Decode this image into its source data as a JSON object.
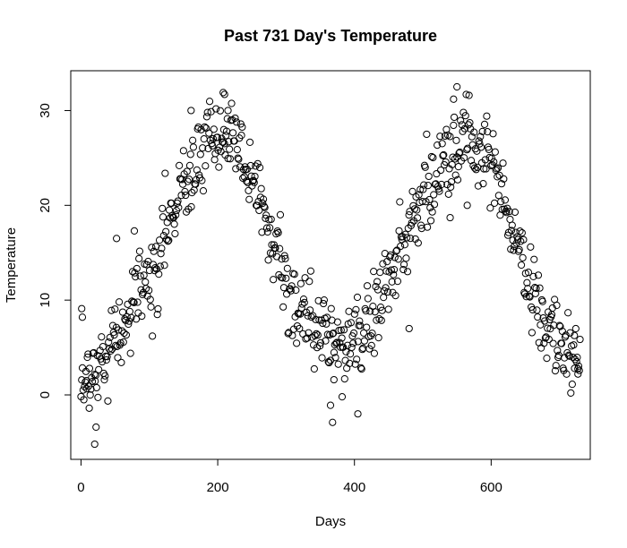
{
  "chart_data": {
    "type": "scatter",
    "title": "Past 731 Day's Temperature",
    "xlabel": "Days",
    "ylabel": "Temperature",
    "xlim": [
      -15,
      745
    ],
    "ylim": [
      -6.8,
      34.2
    ],
    "x_ticks": [
      0,
      200,
      400,
      600
    ],
    "y_ticks": [
      0,
      10,
      20,
      30
    ],
    "grid": false,
    "marker": "open-circle",
    "n_points": 731,
    "seed": 731,
    "curve_points": [
      [
        0,
        2.0
      ],
      [
        30,
        3.5
      ],
      [
        60,
        7.0
      ],
      [
        90,
        11.0
      ],
      [
        120,
        16.0
      ],
      [
        150,
        21.5
      ],
      [
        180,
        25.5
      ],
      [
        200,
        27.5
      ],
      [
        220,
        27.0
      ],
      [
        250,
        23.0
      ],
      [
        270,
        19.0
      ],
      [
        290,
        14.0
      ],
      [
        310,
        10.0
      ],
      [
        330,
        8.5
      ],
      [
        360,
        6.0
      ],
      [
        390,
        5.0
      ],
      [
        420,
        7.0
      ],
      [
        450,
        12.0
      ],
      [
        480,
        17.0
      ],
      [
        510,
        21.5
      ],
      [
        540,
        25.5
      ],
      [
        560,
        27.0
      ],
      [
        580,
        26.5
      ],
      [
        600,
        25.0
      ],
      [
        620,
        20.5
      ],
      [
        640,
        15.0
      ],
      [
        660,
        10.0
      ],
      [
        680,
        7.0
      ],
      [
        700,
        6.0
      ],
      [
        730,
        4.0
      ]
    ],
    "noise_sd": 2.2,
    "extra_points": [
      [
        20,
        -5.2
      ],
      [
        22,
        -3.4
      ],
      [
        12,
        -1.4
      ],
      [
        8,
        1.5
      ],
      [
        1,
        9.1
      ],
      [
        2,
        8.2
      ],
      [
        52,
        16.5
      ],
      [
        78,
        17.3
      ],
      [
        208,
        31.9
      ],
      [
        210,
        31.7
      ],
      [
        215,
        30.0
      ],
      [
        161,
        30.0
      ],
      [
        550,
        32.5
      ],
      [
        545,
        31.2
      ],
      [
        368,
        -2.9
      ],
      [
        405,
        -2.0
      ],
      [
        365,
        -1.1
      ],
      [
        382,
        -0.2
      ],
      [
        370,
        1.6
      ],
      [
        480,
        7.0
      ],
      [
        540,
        18.7
      ],
      [
        565,
        20.0
      ],
      [
        727,
        2.2
      ],
      [
        722,
        2.8
      ]
    ]
  }
}
